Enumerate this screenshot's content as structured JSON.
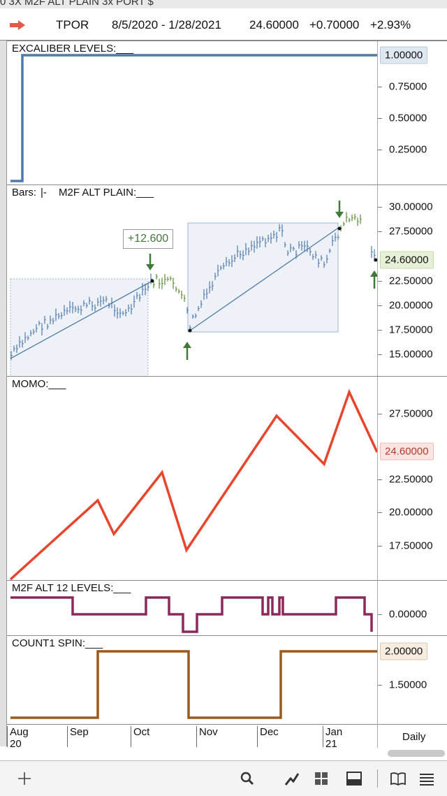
{
  "window_title": "0 3X M2F ALT PLAIN 3x PORT $",
  "header": {
    "symbol": "TPOR",
    "date_range": "8/5/2020 - 1/28/2021",
    "price": "24.60000",
    "change": "+0.70000",
    "change_pct": "+2.93%"
  },
  "panes": {
    "excaliber": {
      "label": "EXCALIBER LEVELS:___",
      "ticks": [
        "0.75000",
        "0.50000",
        "0.25000"
      ],
      "current": "1.00000",
      "line_color": "#4e7ba8"
    },
    "price": {
      "label_bars": "Bars:",
      "label_main": "M2F ALT PLAIN:___",
      "ticks": [
        "30.00000",
        "27.50000",
        "22.50000",
        "20.00000",
        "17.50000",
        "15.00000"
      ],
      "current": "24.60000",
      "annotation": "+12.600",
      "current_color": "#e6f0d6"
    },
    "momo": {
      "label": "MOMO:___",
      "ticks": [
        "27.50000",
        "22.50000",
        "20.00000",
        "17.50000"
      ],
      "current": "24.60000",
      "line_color": "#e8452c"
    },
    "m2f12": {
      "label": "M2F ALT 12 LEVELS:___",
      "ticks": [
        "0.00000"
      ],
      "line_color": "#8b2a5a"
    },
    "count1": {
      "label": "COUNT1 SPIN:___",
      "ticks": [
        "1.50000"
      ],
      "current": "2.00000",
      "line_color": "#9a5a1c"
    }
  },
  "x_axis": {
    "labels": [
      {
        "text": "Aug",
        "sub": "20"
      },
      {
        "text": "Sep",
        "sub": ""
      },
      {
        "text": "Oct",
        "sub": ""
      },
      {
        "text": "Nov",
        "sub": ""
      },
      {
        "text": "Dec",
        "sub": ""
      },
      {
        "text": "Jan",
        "sub": "21"
      }
    ],
    "period": "Daily"
  },
  "toolbar": {
    "icons": [
      "plus-icon",
      "search-icon",
      "draw-line-icon",
      "grid-icon",
      "panel-icon",
      "book-icon",
      "list-icon"
    ]
  }
}
